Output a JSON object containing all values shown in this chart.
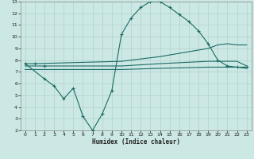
{
  "xlabel": "Humidex (Indice chaleur)",
  "bg_color": "#cce8e4",
  "grid_color": "#b0d0cc",
  "line_color": "#1a6b65",
  "xlim": [
    -0.5,
    23.5
  ],
  "ylim": [
    2,
    13
  ],
  "x_ticks": [
    0,
    1,
    2,
    3,
    4,
    5,
    6,
    7,
    8,
    9,
    10,
    11,
    12,
    13,
    14,
    15,
    16,
    17,
    18,
    19,
    20,
    21,
    22,
    23
  ],
  "y_ticks": [
    2,
    3,
    4,
    5,
    6,
    7,
    8,
    9,
    10,
    11,
    12,
    13
  ],
  "line1_x": [
    0,
    1,
    10,
    14,
    19,
    20,
    21,
    22,
    23
  ],
  "line1_y": [
    7.7,
    7.7,
    7.9,
    8.3,
    9.0,
    9.3,
    9.4,
    9.3,
    9.3
  ],
  "line2_x": [
    0,
    2,
    10,
    14,
    19,
    20,
    21,
    22,
    23
  ],
  "line2_y": [
    7.5,
    7.5,
    7.5,
    7.7,
    7.9,
    7.9,
    7.9,
    7.9,
    7.5
  ],
  "line3_x": [
    0,
    2,
    10,
    14,
    19,
    20,
    21,
    22,
    23
  ],
  "line3_y": [
    7.2,
    7.2,
    7.2,
    7.3,
    7.4,
    7.4,
    7.4,
    7.4,
    7.3
  ],
  "line4_x": [
    0,
    2,
    3,
    4,
    5,
    6,
    7,
    8,
    9,
    10,
    11,
    12,
    13,
    14,
    15,
    16,
    17,
    18,
    19,
    20,
    21,
    22,
    23
  ],
  "line4_y": [
    7.7,
    6.4,
    5.8,
    4.7,
    5.6,
    3.2,
    2.0,
    3.4,
    5.4,
    10.2,
    11.6,
    12.5,
    13.0,
    13.0,
    12.5,
    11.9,
    11.3,
    10.5,
    9.4,
    8.0,
    7.5,
    7.4,
    7.4
  ]
}
